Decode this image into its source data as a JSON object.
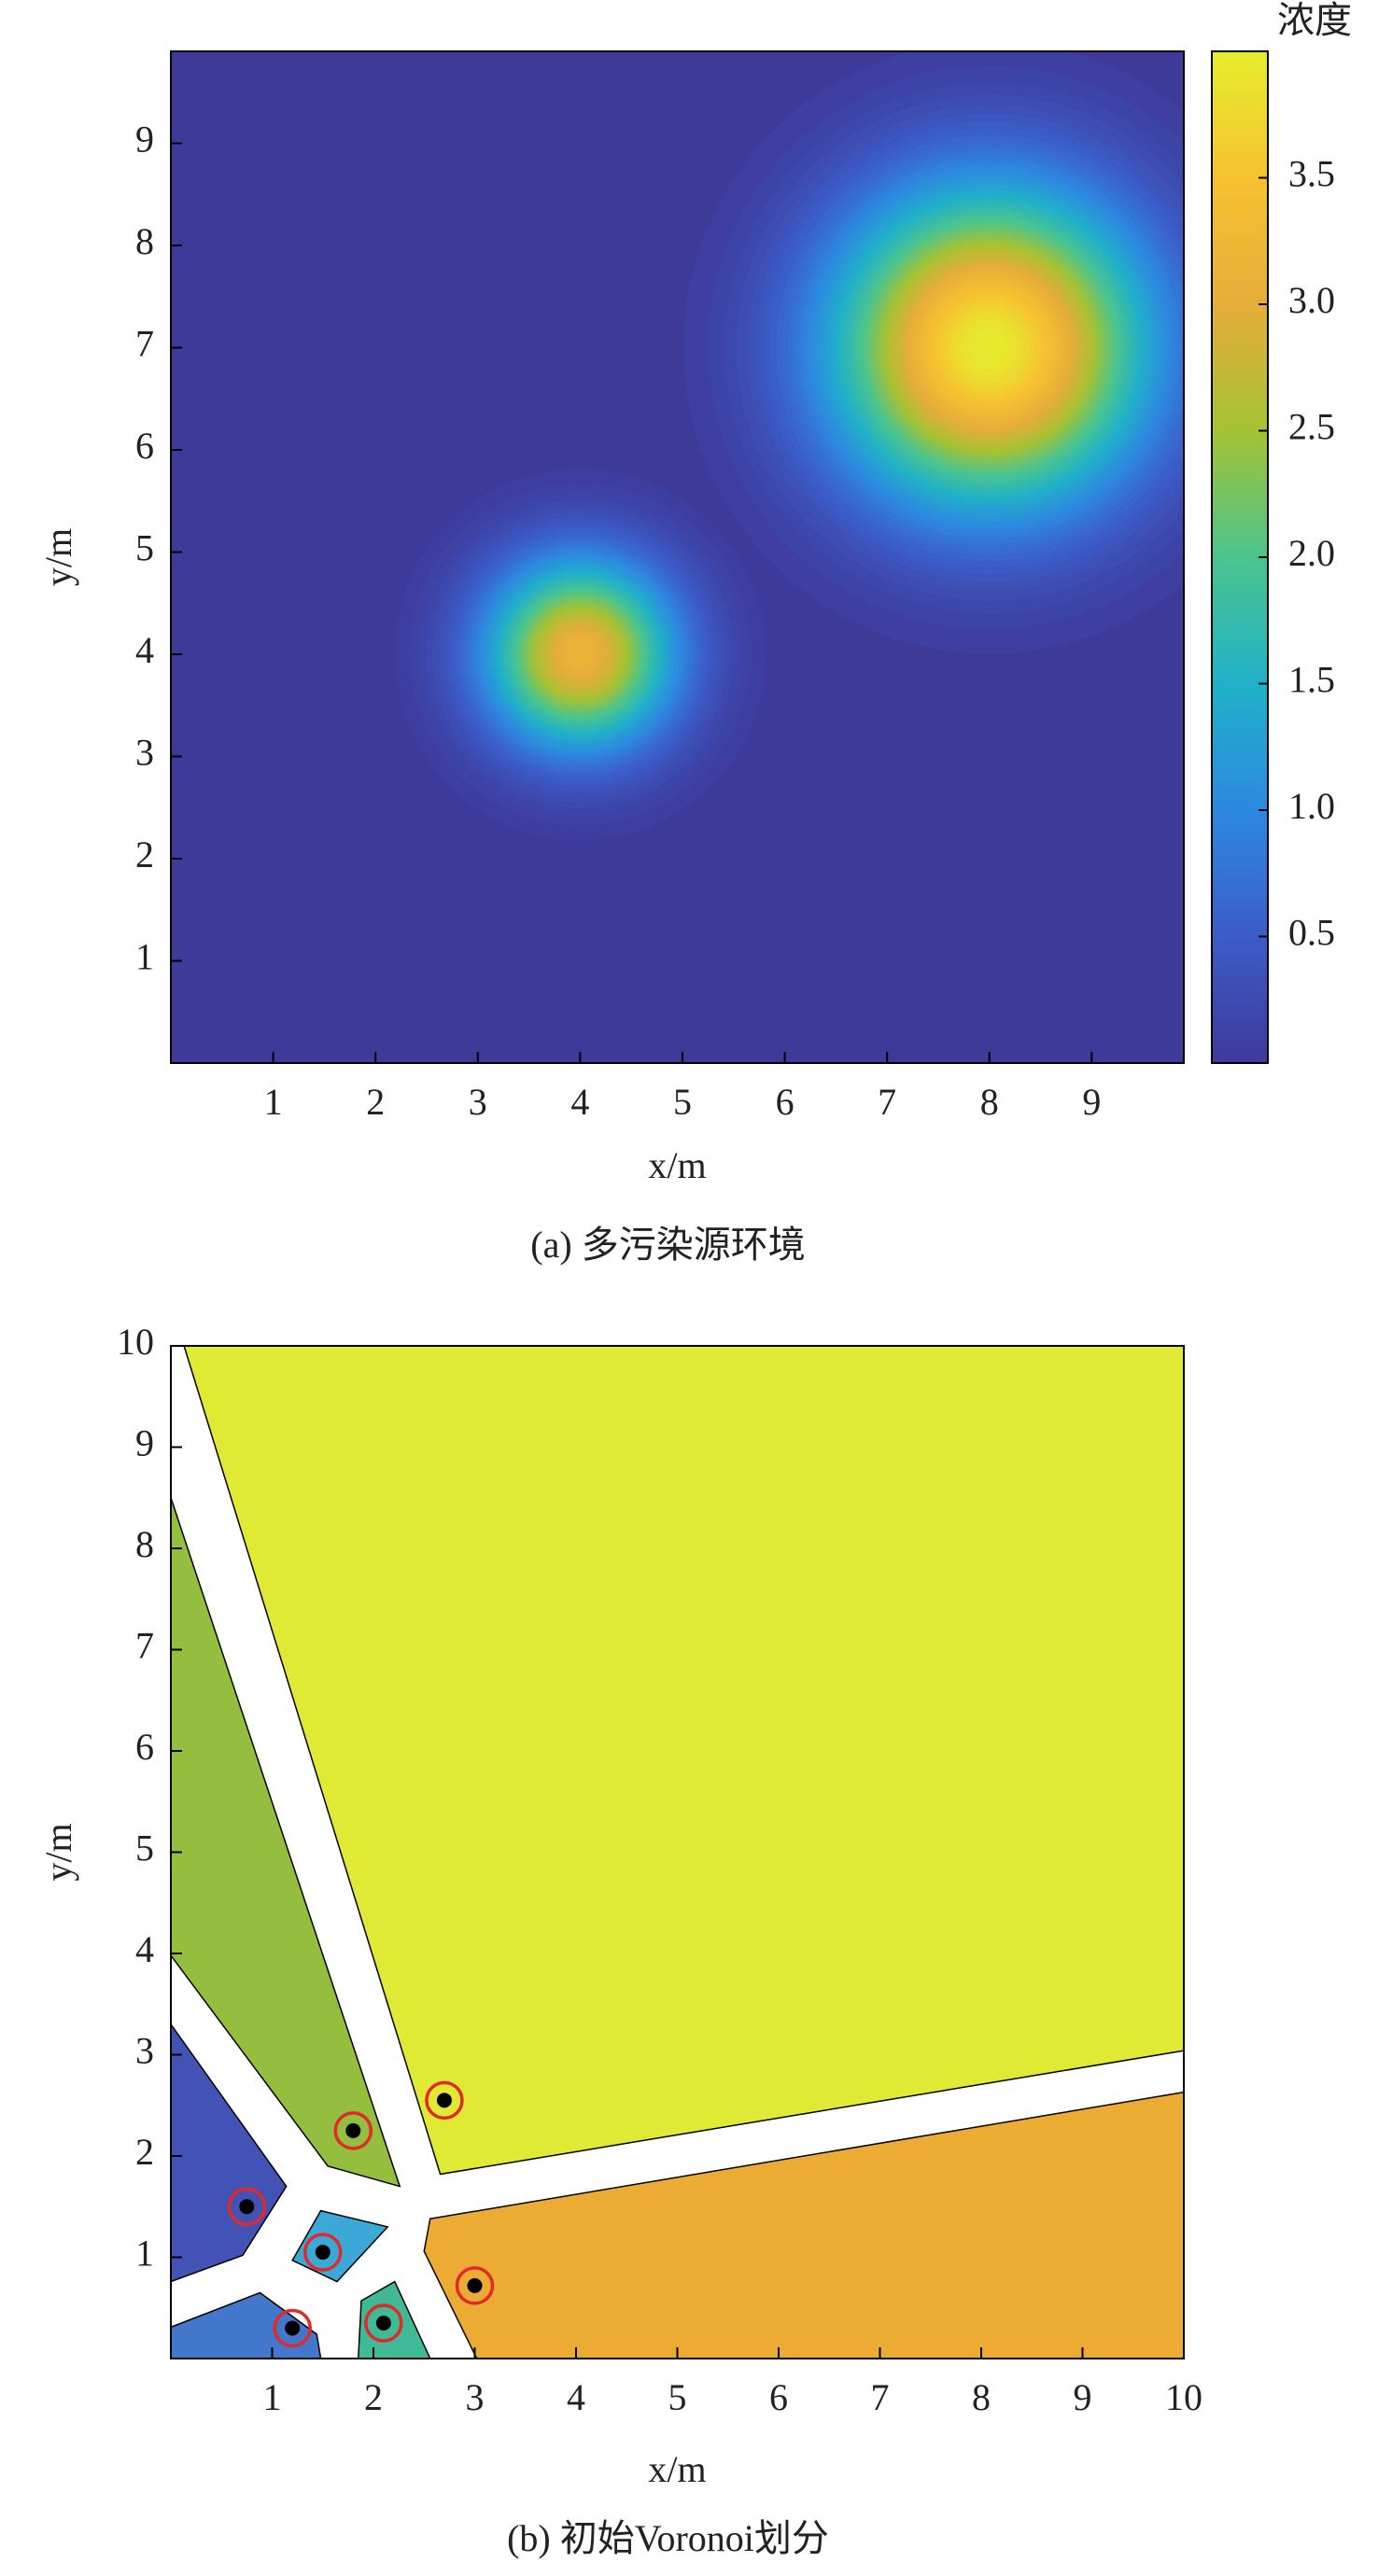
{
  "chart_data": [
    {
      "type": "heatmap",
      "xlabel": "x/m",
      "ylabel": "y/m",
      "caption": "(a) 多污染源环境",
      "xlim": [
        0,
        9.9
      ],
      "ylim": [
        0,
        9.9
      ],
      "xticks": [
        1,
        2,
        3,
        4,
        5,
        6,
        7,
        8,
        9
      ],
      "yticks": [
        1,
        2,
        3,
        4,
        5,
        6,
        7,
        8,
        9
      ],
      "sources": [
        {
          "x": 4,
          "y": 4,
          "peak": 3.2,
          "sigma": 0.65
        },
        {
          "x": 8,
          "y": 7,
          "peak": 4,
          "sigma": 1.07
        }
      ],
      "colorbar_title": "浓度",
      "clim": [
        0,
        4
      ],
      "colorbar_ticks": [
        0.5,
        1.0,
        1.5,
        2.0,
        2.5,
        3.0,
        3.5
      ],
      "colormap": [
        "#3e3a9a",
        "#3c5cc8",
        "#2d89e0",
        "#20b1c8",
        "#4bc48e",
        "#a5c234",
        "#e6ad39",
        "#f7c230",
        "#e5ed2c"
      ]
    },
    {
      "type": "voronoi",
      "xlabel": "x/m",
      "ylabel": "y/m",
      "caption": "(b) 初始Voronoi划分",
      "xlim": [
        0,
        10
      ],
      "ylim": [
        0,
        10
      ],
      "xticks": [
        1,
        2,
        3,
        4,
        5,
        6,
        7,
        8,
        9,
        10
      ],
      "yticks": [
        1,
        2,
        3,
        4,
        5,
        6,
        7,
        8,
        9,
        10
      ],
      "regions": [
        {
          "color": "#e0ea35",
          "x": [
            0.13,
            10,
            10,
            2.66
          ],
          "y": [
            10,
            10,
            3.04,
            1.82
          ]
        },
        {
          "color": "#93be3e",
          "x": [
            0,
            2.26,
            1.55,
            0
          ],
          "y": [
            8.5,
            1.7,
            1.9,
            3.98
          ]
        },
        {
          "color": "#4253b5",
          "x": [
            0,
            1.14,
            0.71,
            0
          ],
          "y": [
            3.3,
            1.7,
            1.02,
            0.76
          ]
        },
        {
          "color": "#3ba8d8",
          "x": [
            1.48,
            2.14,
            1.64,
            1.2
          ],
          "y": [
            1.46,
            1.3,
            0.76,
            0.97
          ]
        },
        {
          "color": "#4277cc",
          "x": [
            0,
            0.88,
            1.44,
            1.48,
            0
          ],
          "y": [
            0.31,
            0.65,
            0.24,
            0,
            0
          ]
        },
        {
          "color": "#40b996",
          "x": [
            1.88,
            2.21,
            2.56,
            1.85
          ],
          "y": [
            0.57,
            0.76,
            0,
            0
          ]
        },
        {
          "color": "#ecab33",
          "x": [
            2.56,
            10,
            10,
            3.02,
            2.5
          ],
          "y": [
            1.38,
            2.63,
            0,
            0,
            1.06
          ]
        }
      ],
      "agents": {
        "x": [
          2.7,
          1.8,
          0.75,
          1.5,
          1.2,
          2.1,
          3.0
        ],
        "y": [
          2.55,
          2.25,
          1.5,
          1.05,
          0.3,
          0.35,
          0.72
        ],
        "color": "#000000",
        "ring_color": "#e02a2a"
      }
    }
  ]
}
